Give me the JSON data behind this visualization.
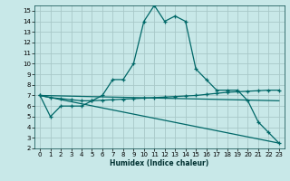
{
  "xlabel": "Humidex (Indice chaleur)",
  "bg_color": "#c8e8e8",
  "grid_color": "#a8c8c8",
  "line_color": "#006868",
  "xlim": [
    -0.5,
    23.5
  ],
  "ylim": [
    2,
    15.5
  ],
  "xticks": [
    0,
    1,
    2,
    3,
    4,
    5,
    6,
    7,
    8,
    9,
    10,
    11,
    12,
    13,
    14,
    15,
    16,
    17,
    18,
    19,
    20,
    21,
    22,
    23
  ],
  "yticks": [
    2,
    3,
    4,
    5,
    6,
    7,
    8,
    9,
    10,
    11,
    12,
    13,
    14,
    15
  ],
  "curve1_x": [
    0,
    1,
    2,
    3,
    4,
    5,
    6,
    7,
    8,
    9,
    10,
    11,
    12,
    13,
    14,
    15,
    16,
    17,
    18,
    19,
    20,
    21,
    22,
    23
  ],
  "curve1_y": [
    7.0,
    5.0,
    6.0,
    6.0,
    6.0,
    6.5,
    7.0,
    8.5,
    8.5,
    10.0,
    14.0,
    15.5,
    14.0,
    14.5,
    14.0,
    9.5,
    8.5,
    7.5,
    7.5,
    7.5,
    6.5,
    4.5,
    3.5,
    2.5
  ],
  "curve2_x": [
    0,
    1,
    2,
    3,
    4,
    5,
    6,
    7,
    8,
    9,
    10,
    11,
    12,
    13,
    14,
    15,
    16,
    17,
    18,
    19,
    20,
    21,
    22,
    23
  ],
  "curve2_y": [
    7.0,
    6.8,
    6.7,
    6.6,
    6.5,
    6.5,
    6.55,
    6.6,
    6.65,
    6.7,
    6.75,
    6.8,
    6.85,
    6.9,
    6.95,
    7.0,
    7.1,
    7.2,
    7.3,
    7.35,
    7.4,
    7.45,
    7.5,
    7.5
  ],
  "curve3_x": [
    0,
    23
  ],
  "curve3_y": [
    7.0,
    6.5
  ],
  "curve4_x": [
    0,
    23
  ],
  "curve4_y": [
    7.0,
    2.5
  ]
}
